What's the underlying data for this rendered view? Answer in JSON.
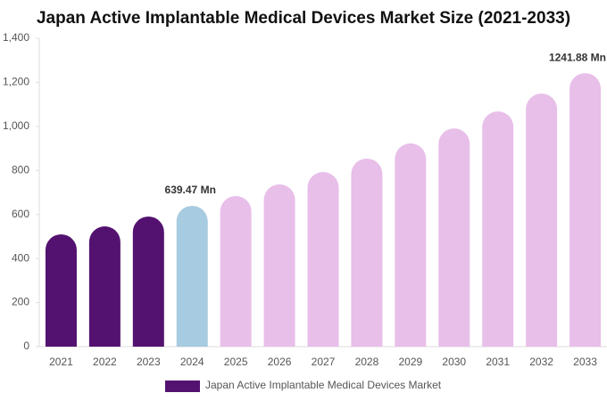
{
  "chart_data": {
    "type": "bar",
    "title": "Japan Active Implantable Medical Devices Market Size (2021-2033)",
    "categories": [
      "2021",
      "2022",
      "2023",
      "2024",
      "2025",
      "2026",
      "2027",
      "2028",
      "2029",
      "2030",
      "2031",
      "2032",
      "2033"
    ],
    "series": [
      {
        "name": "Japan Active Implantable Medical Devices Market",
        "color": "#541270",
        "values": [
          510,
          546,
          591,
          639.47,
          684,
          737,
          793,
          854,
          923,
          991,
          1068,
          1149,
          1241.88
        ],
        "value_labels": [
          null,
          null,
          null,
          "639.47 Mn",
          null,
          null,
          null,
          null,
          null,
          null,
          null,
          null,
          "1241.88 Mn"
        ]
      }
    ],
    "bar_colors": [
      "#541270",
      "#541270",
      "#541270",
      "#a7cbe0",
      "#e8bfe9",
      "#e8bfe9",
      "#e8bfe9",
      "#e8bfe9",
      "#e8bfe9",
      "#e8bfe9",
      "#e8bfe9",
      "#e8bfe9",
      "#e8bfe9"
    ],
    "ylim": [
      0,
      1400
    ],
    "yticks": [
      0,
      200,
      400,
      600,
      800,
      {
        "value": 1000,
        "label": "1,000"
      },
      {
        "value": 1200,
        "label": "1,200"
      },
      {
        "value": 1400,
        "label": "1,400"
      }
    ],
    "grid": false
  }
}
